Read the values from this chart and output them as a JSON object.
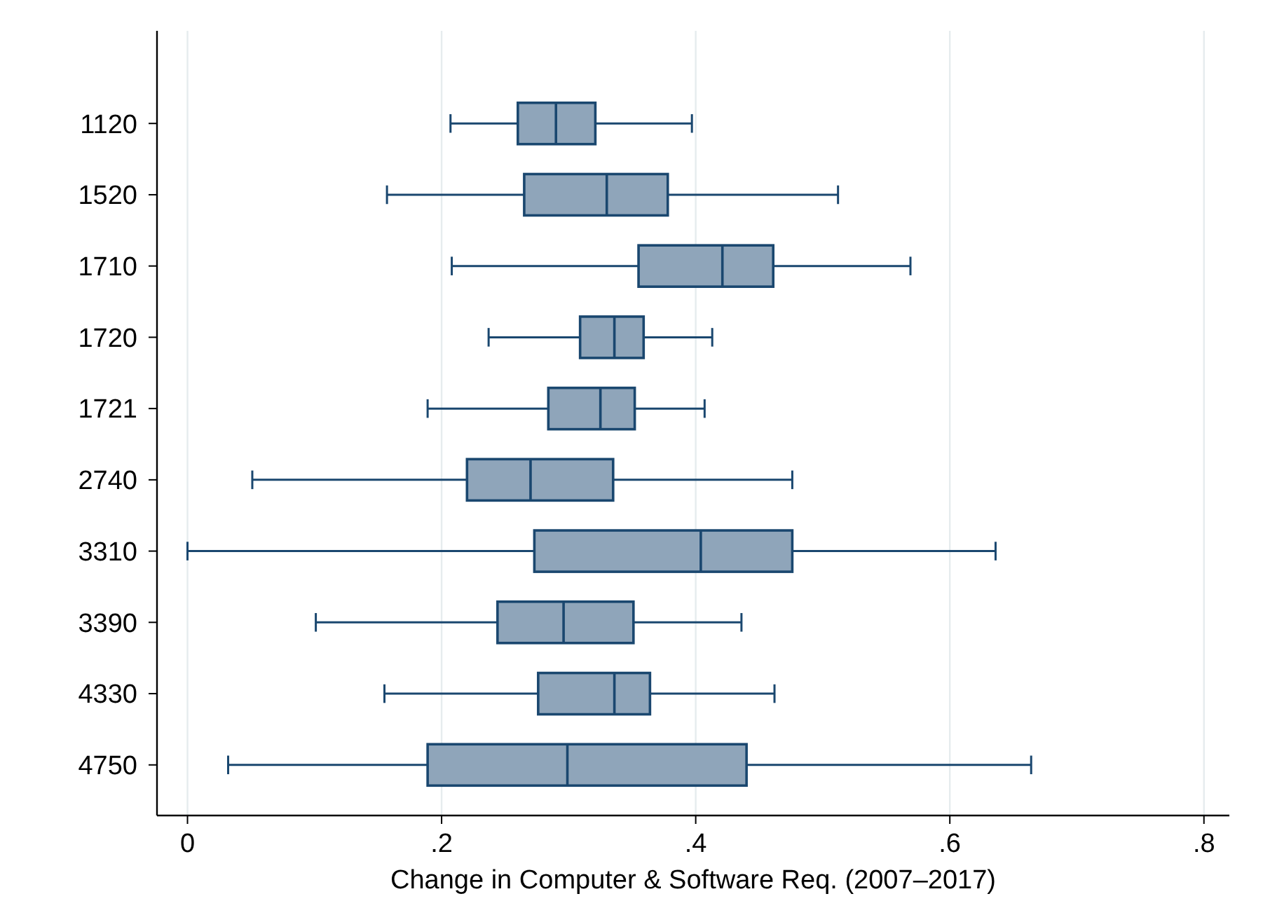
{
  "chart_data": {
    "type": "box",
    "orientation": "horizontal",
    "xlabel": "Change in Computer & Software Req. (2007–2017)",
    "categories": [
      "1120",
      "1520",
      "1710",
      "1720",
      "1721",
      "2740",
      "3310",
      "3390",
      "4330",
      "4750"
    ],
    "color": "#8fa5ba",
    "xlim": [
      -0.024,
      0.82
    ],
    "xticks": [
      {
        "value": 0,
        "label": "0"
      },
      {
        "value": 0.2,
        "label": ".2"
      },
      {
        "value": 0.4,
        "label": ".4"
      },
      {
        "value": 0.6,
        "label": ".6"
      },
      {
        "value": 0.8,
        "label": ".8"
      }
    ],
    "grid": "x",
    "boxes": [
      {
        "low": 0.207,
        "q1": 0.26,
        "median": 0.29,
        "q3": 0.321,
        "high": 0.397
      },
      {
        "low": 0.157,
        "q1": 0.265,
        "median": 0.33,
        "q3": 0.378,
        "high": 0.512
      },
      {
        "low": 0.208,
        "q1": 0.355,
        "median": 0.421,
        "q3": 0.461,
        "high": 0.569
      },
      {
        "low": 0.237,
        "q1": 0.309,
        "median": 0.336,
        "q3": 0.359,
        "high": 0.413
      },
      {
        "low": 0.189,
        "q1": 0.284,
        "median": 0.325,
        "q3": 0.352,
        "high": 0.407
      },
      {
        "low": 0.051,
        "q1": 0.22,
        "median": 0.27,
        "q3": 0.335,
        "high": 0.476
      },
      {
        "low": 0,
        "q1": 0.273,
        "median": 0.404,
        "q3": 0.476,
        "high": 0.636
      },
      {
        "low": 0.101,
        "q1": 0.244,
        "median": 0.296,
        "q3": 0.351,
        "high": 0.436
      },
      {
        "low": 0.155,
        "q1": 0.276,
        "median": 0.336,
        "q3": 0.364,
        "high": 0.462
      },
      {
        "low": 0.032,
        "q1": 0.189,
        "median": 0.299,
        "q3": 0.44,
        "high": 0.664
      }
    ]
  }
}
